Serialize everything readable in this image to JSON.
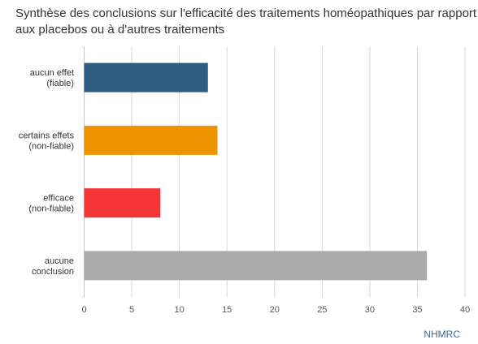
{
  "chart_data": {
    "type": "bar",
    "orientation": "horizontal",
    "title_lines": [
      "Synthèse des conclusions sur l'efficacité des traitements homéopathiques par rapport",
      "aux placebos ou à d'autres traitements"
    ],
    "categories": [
      [
        "aucun effet",
        "(fiable)"
      ],
      [
        "certains effets",
        "(non-fiable)"
      ],
      [
        "efficace",
        "(non-fiable)"
      ],
      [
        "aucune",
        "conclusion"
      ]
    ],
    "values": [
      13,
      14,
      8,
      36
    ],
    "colors": [
      "#2e5b82",
      "#ef9200",
      "#f43535",
      "#aaaaaa"
    ],
    "xlim": [
      0,
      40
    ],
    "xticks": [
      0,
      5,
      10,
      15,
      20,
      25,
      30,
      35,
      40
    ],
    "grid": true,
    "xlabel": "",
    "ylabel": "",
    "credit": "NHMRC"
  }
}
